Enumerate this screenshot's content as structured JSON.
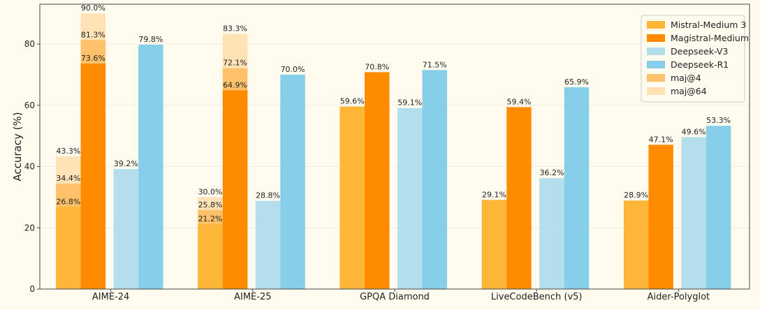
{
  "chart_data": {
    "type": "bar",
    "ylabel": "Accuracy (%)",
    "ylim": [
      0,
      93
    ],
    "yticks": [
      0,
      20,
      40,
      60,
      80
    ],
    "grid": true,
    "legend_position": "top-right",
    "categories": [
      "AIME-24",
      "AIME-25",
      "GPQA Diamond",
      "LiveCodeBench (v5)",
      "Aider-Polyglot"
    ],
    "series": [
      {
        "name": "Mistral-Medium 3",
        "color": "#fdb637",
        "values": [
          26.8,
          21.2,
          59.6,
          29.1,
          28.9
        ],
        "labels": [
          "26.8%",
          "21.2%",
          "59.6%",
          "29.1%",
          "28.9%"
        ]
      },
      {
        "name": "Magistral-Medium",
        "color": "#ff8c00",
        "values": [
          73.6,
          64.9,
          70.8,
          59.4,
          47.1
        ],
        "labels": [
          "73.6%",
          "64.9%",
          "70.8%",
          "59.4%",
          "47.1%"
        ]
      },
      {
        "name": "Deepseek-V3",
        "color": "#b3dfec",
        "values": [
          39.2,
          28.8,
          59.1,
          36.2,
          49.6
        ],
        "labels": [
          "39.2%",
          "28.8%",
          "59.1%",
          "36.2%",
          "49.6%"
        ]
      },
      {
        "name": "Deepseek-R1",
        "color": "#87ceeb",
        "values": [
          79.8,
          70.0,
          71.5,
          65.9,
          53.3
        ],
        "labels": [
          "79.8%",
          "70.0%",
          "71.5%",
          "65.9%",
          "53.3%"
        ]
      }
    ],
    "stacked_extensions": [
      {
        "name": "maj@4",
        "color": "#ffc26b",
        "points": [
          {
            "series": "Mistral-Medium 3",
            "category": "AIME-24",
            "value": 34.4,
            "label": "34.4%"
          },
          {
            "series": "Magistral-Medium",
            "category": "AIME-24",
            "value": 81.3,
            "label": "81.3%"
          },
          {
            "series": "Mistral-Medium 3",
            "category": "AIME-25",
            "value": 25.8,
            "label": "25.8%"
          },
          {
            "series": "Magistral-Medium",
            "category": "AIME-25",
            "value": 72.1,
            "label": "72.1%"
          }
        ]
      },
      {
        "name": "maj@64",
        "color": "#ffe2b5",
        "points": [
          {
            "series": "Mistral-Medium 3",
            "category": "AIME-24",
            "value": 43.3,
            "label": "43.3%"
          },
          {
            "series": "Magistral-Medium",
            "category": "AIME-24",
            "value": 90.0,
            "label": "90.0%"
          },
          {
            "series": "Mistral-Medium 3",
            "category": "AIME-25",
            "value": 30.0,
            "label": "30.0%"
          },
          {
            "series": "Magistral-Medium",
            "category": "AIME-25",
            "value": 83.3,
            "label": "83.3%"
          }
        ]
      }
    ]
  }
}
